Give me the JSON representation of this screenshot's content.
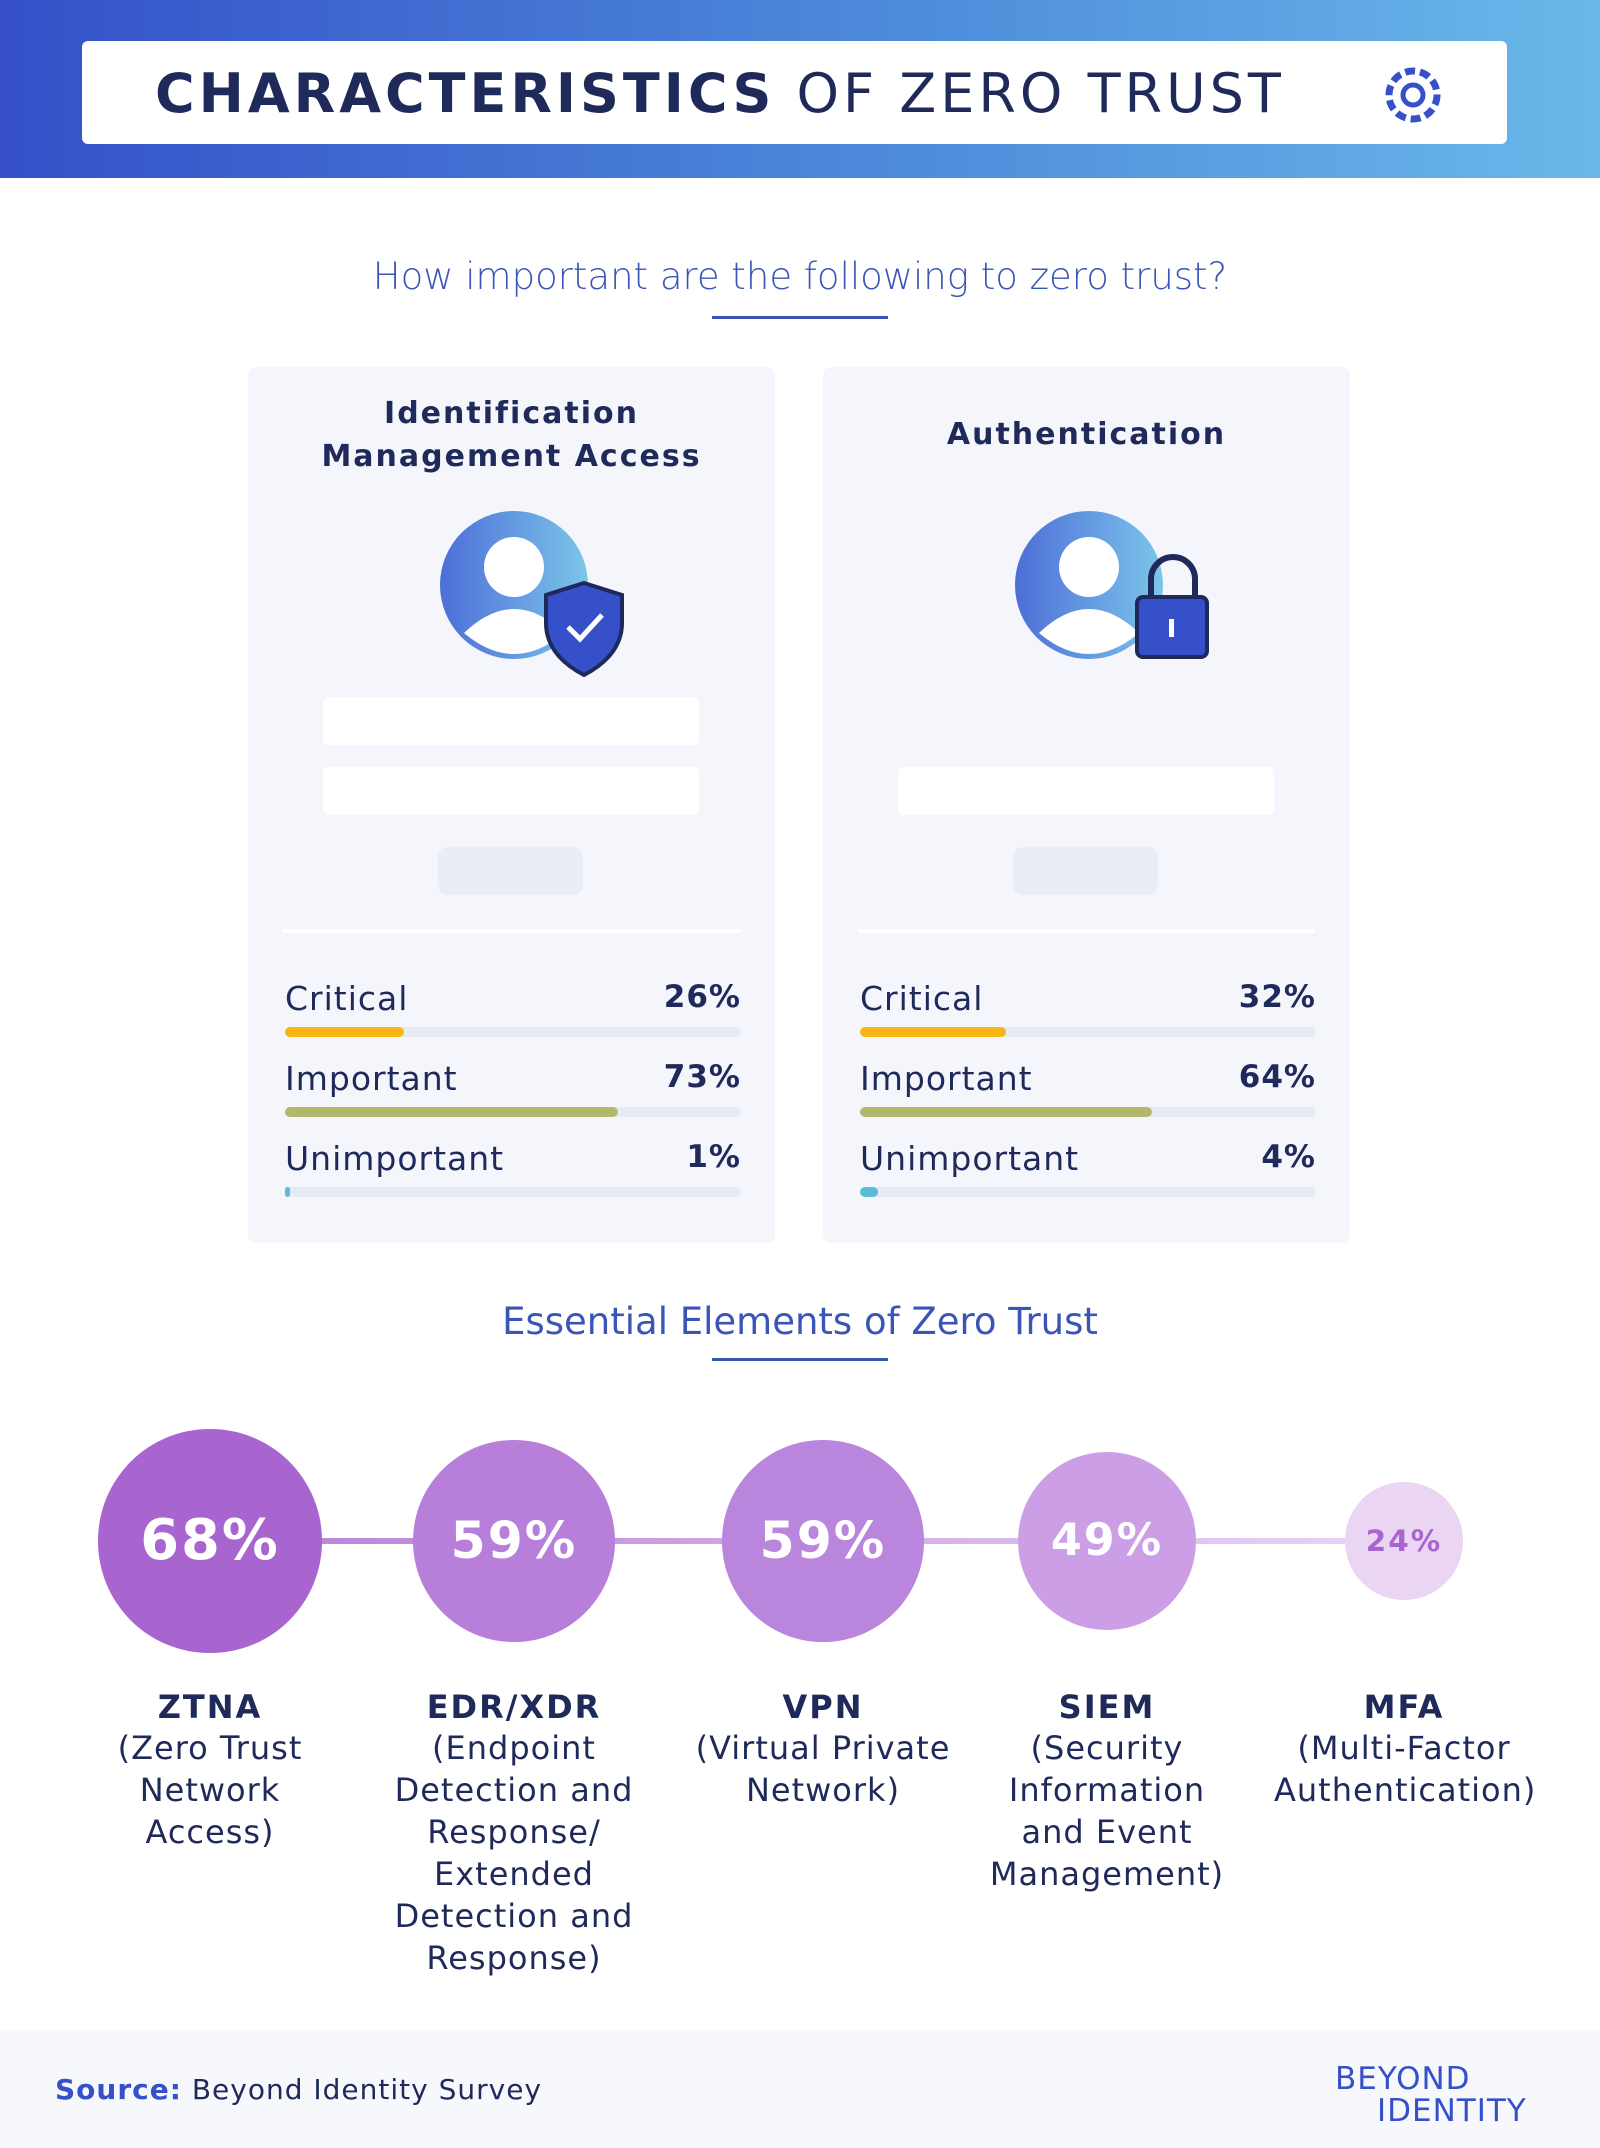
{
  "header": {
    "title_bold": "CHARACTERISTICS",
    "title_light": "OF ZERO TRUST"
  },
  "question": "How important are the following to zero trust?",
  "chart_data": [
    {
      "type": "bar",
      "orientation": "horizontal",
      "title": "Identification Management Access",
      "categories": [
        "Critical",
        "Important",
        "Unimportant"
      ],
      "values": [
        26,
        73,
        1
      ],
      "value_labels": [
        "26%",
        "73%",
        "1%"
      ],
      "colors": [
        "#f7b516",
        "#b3b96c",
        "#5bbcd8"
      ],
      "xlim": [
        0,
        100
      ]
    },
    {
      "type": "bar",
      "orientation": "horizontal",
      "title": "Authentication",
      "categories": [
        "Critical",
        "Important",
        "Unimportant"
      ],
      "values": [
        32,
        64,
        4
      ],
      "value_labels": [
        "32%",
        "64%",
        "4%"
      ],
      "colors": [
        "#f7b516",
        "#b3b96c",
        "#5bbcd8"
      ],
      "xlim": [
        0,
        100
      ]
    },
    {
      "type": "bubble",
      "title": "Essential Elements of Zero Trust",
      "categories": [
        "ZTNA",
        "EDR/XDR",
        "VPN",
        "SIEM",
        "MFA"
      ],
      "descriptions": [
        "(Zero Trust Network Access)",
        "(Endpoint Detection and Response/ Extended Detection and Response)",
        "(Virtual Private Network)",
        "(Security Information and Event Management)",
        "(Multi-Factor Authentication)"
      ],
      "values": [
        68,
        59,
        59,
        49,
        24
      ],
      "value_labels": [
        "68%",
        "59%",
        "59%",
        "49%",
        "24%"
      ],
      "colors": [
        "#a865cf",
        "#b77fd9",
        "#b985dd",
        "#cc9ee6",
        "#ead5f3"
      ]
    }
  ],
  "source": {
    "label": "Source:",
    "text": "Beyond Identity Survey"
  },
  "logo": {
    "line1": "BEYOND",
    "line2": "IDENTITY"
  }
}
